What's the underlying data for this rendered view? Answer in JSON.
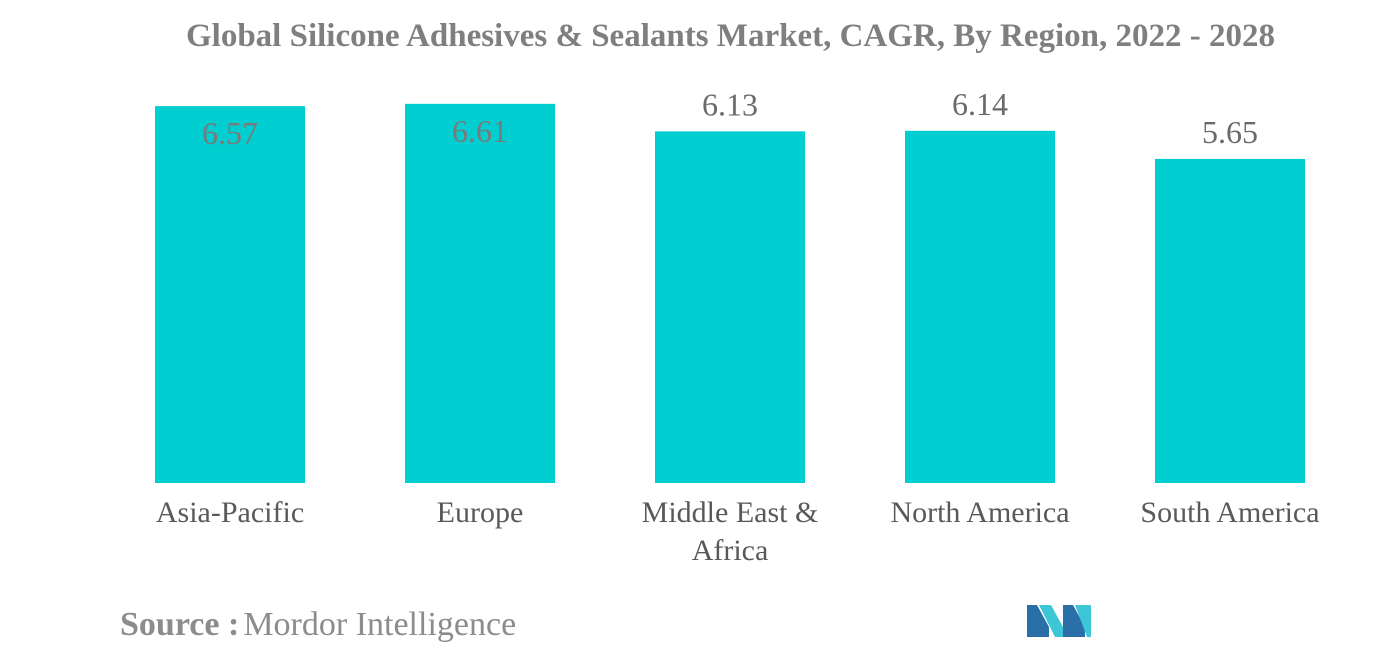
{
  "chart_data": {
    "type": "bar",
    "title": "Global Silicone Adhesives & Sealants Market, CAGR, By Region, 2022 - 2028",
    "categories": [
      "Asia-Pacific",
      "Europe",
      "Middle East & Africa",
      "North America",
      "South America"
    ],
    "category_lines": [
      [
        "Asia-Pacific"
      ],
      [
        "Europe"
      ],
      [
        "Middle East &",
        "Africa"
      ],
      [
        "North America"
      ],
      [
        "South America"
      ]
    ],
    "values": [
      6.57,
      6.61,
      6.13,
      6.14,
      5.65
    ],
    "value_labels": [
      "6.57",
      "6.61",
      "6.13",
      "6.14",
      "5.65"
    ],
    "ylim": [
      0,
      7.2
    ],
    "grid": false,
    "legend": "none",
    "bar_color": "#00CED1",
    "xlabel": "",
    "ylabel": ""
  },
  "source": {
    "label": "Source :",
    "value": "Mordor Intelligence"
  },
  "colors": {
    "title": "#7f7f7f",
    "label": "#595959",
    "logo_dark": "#2a6fa8",
    "logo_light": "#3cc6d6"
  }
}
